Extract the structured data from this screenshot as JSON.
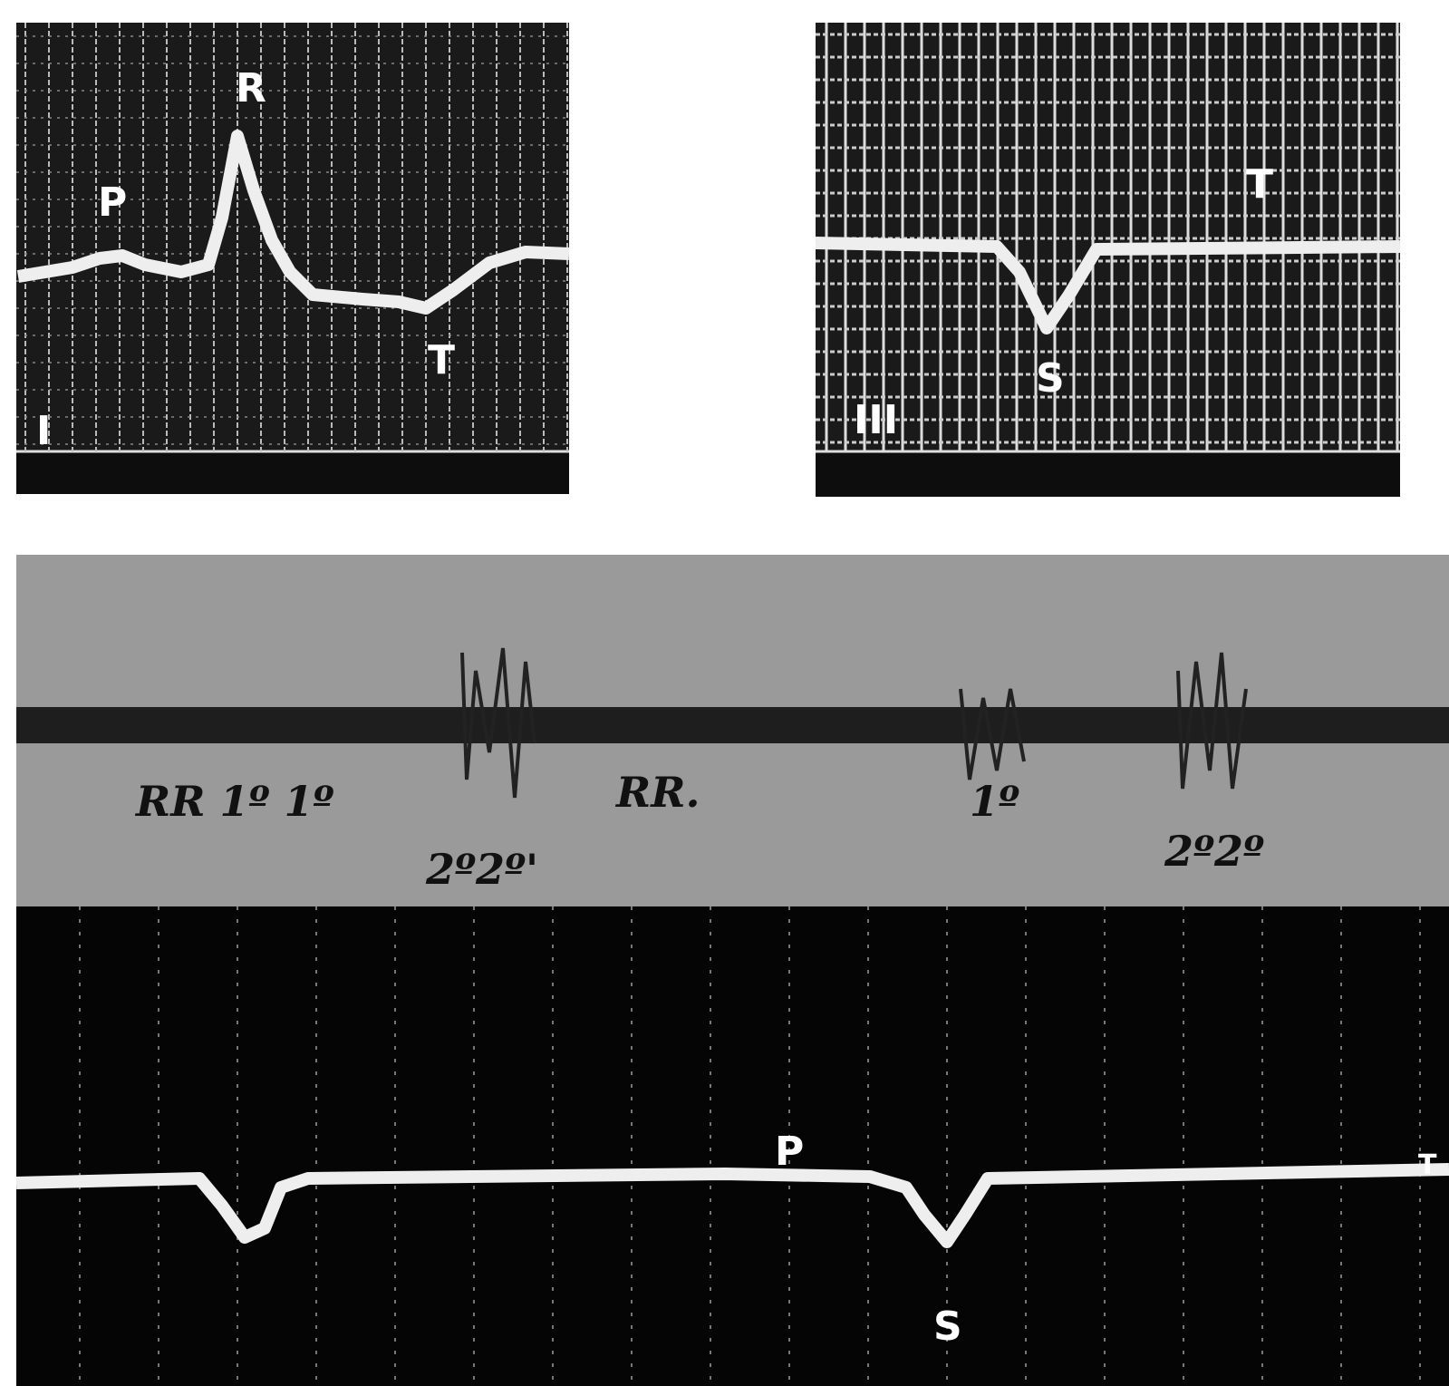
{
  "panels": [
    {
      "lead": "I",
      "labels": [
        "P",
        "R",
        "T"
      ]
    },
    {
      "lead": "III",
      "labels": [
        "S",
        "T"
      ]
    },
    {
      "annotations": [
        "RR 1º 1º",
        "2º2º'",
        "RR.",
        "1º",
        "2º2º"
      ],
      "labels": [
        "P",
        "S",
        "T"
      ]
    }
  ]
}
